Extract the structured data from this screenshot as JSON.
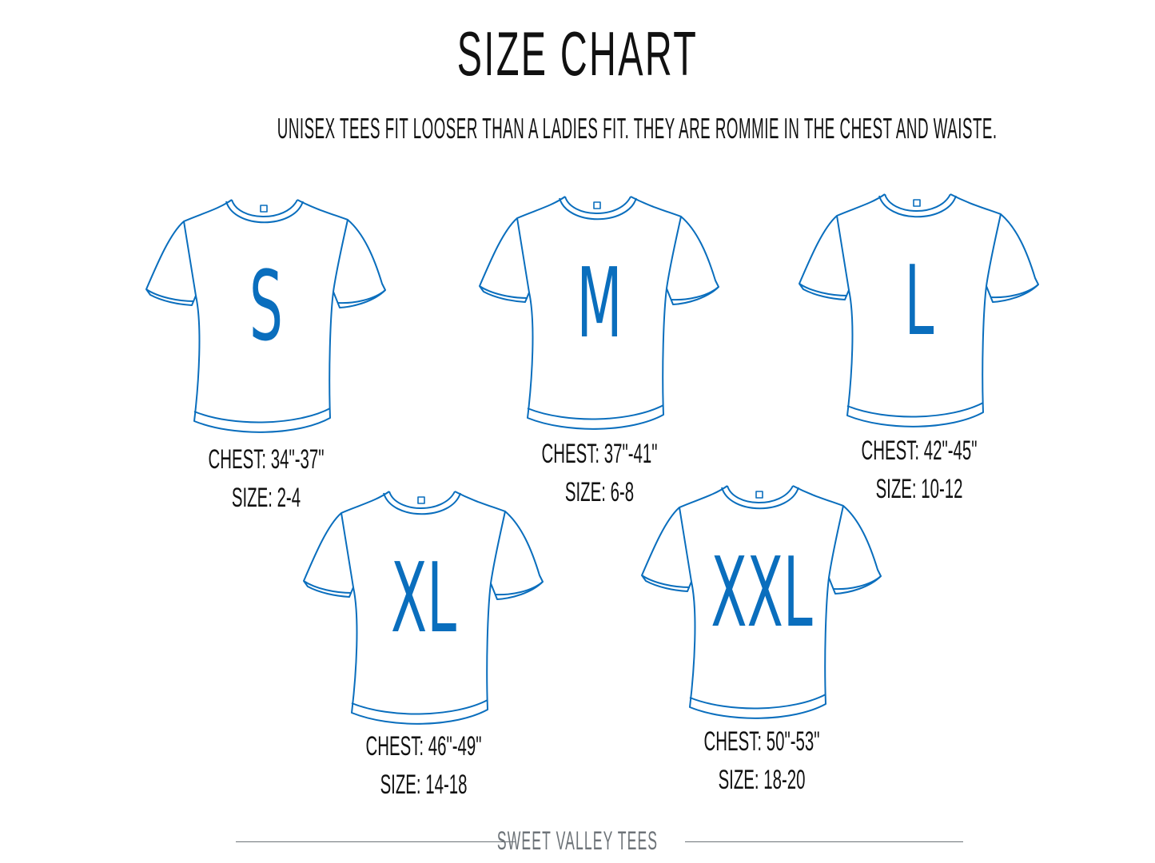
{
  "title": "SIZE CHART",
  "subtitle": "UNISEX TEES FIT LOOSER THAN A LADIES FIT.  THEY ARE ROMMIE IN THE CHEST AND WAISTE.",
  "colors": {
    "shirt_outline": "#0a6ebd",
    "letter": "#0a6ebd",
    "text": "#111111",
    "footer": "#6d7378"
  },
  "sizes": [
    {
      "label": "S",
      "chest": "CHEST: 34\"-37\"",
      "size": "SIZE: 2-4"
    },
    {
      "label": "M",
      "chest": "CHEST: 37\"-41\"",
      "size": "SIZE: 6-8"
    },
    {
      "label": "L",
      "chest": "CHEST: 42\"-45\"",
      "size": "SIZE: 10-12"
    },
    {
      "label": "XL",
      "chest": "CHEST: 46\"-49\"",
      "size": "SIZE: 14-18"
    },
    {
      "label": "XXL",
      "chest": "CHEST: 50\"-53\"",
      "size": "SIZE: 18-20"
    }
  ],
  "footer": "SWEET VALLEY TEES"
}
